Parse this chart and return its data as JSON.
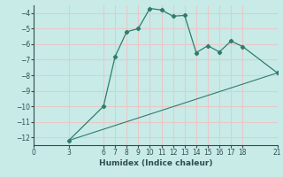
{
  "title": "",
  "xlabel": "Humidex (Indice chaleur)",
  "background_color": "#c8ebe8",
  "grid_color": "#e8c8c8",
  "line_color": "#2e7d6e",
  "xlim": [
    0,
    21
  ],
  "ylim": [
    -12.5,
    -3.5
  ],
  "yticks": [
    -12,
    -11,
    -10,
    -9,
    -8,
    -7,
    -6,
    -5,
    -4
  ],
  "xticks": [
    0,
    3,
    6,
    7,
    8,
    9,
    10,
    11,
    12,
    13,
    14,
    15,
    16,
    17,
    18,
    21
  ],
  "curve1_x": [
    3,
    6,
    7,
    8,
    9,
    10,
    11,
    12,
    13,
    14,
    15,
    16,
    17,
    18,
    21
  ],
  "curve1_y": [
    -12.2,
    -10.0,
    -6.8,
    -5.2,
    -5.0,
    -3.7,
    -3.8,
    -4.2,
    -4.15,
    -6.55,
    -6.1,
    -6.5,
    -5.8,
    -6.15,
    -7.85
  ],
  "curve2_x": [
    3,
    21
  ],
  "curve2_y": [
    -12.2,
    -7.85
  ]
}
